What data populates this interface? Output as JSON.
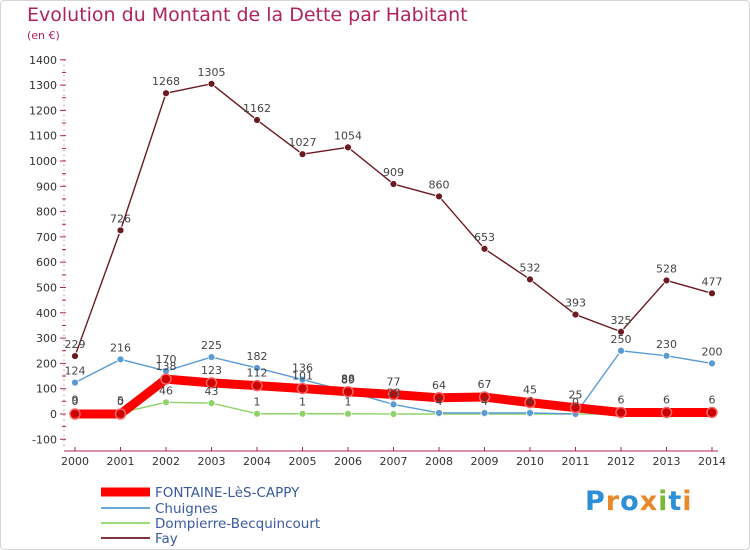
{
  "header": {
    "title": "Evolution du Montant de la Dette par Habitant",
    "unit": "(en €)"
  },
  "logo": {
    "text": "Proxiti",
    "colors": [
      "#2d8fd6",
      "#e8892a",
      "#2d8fd6",
      "#e8892a",
      "#7ab83a",
      "#2d8fd6",
      "#e8892a"
    ]
  },
  "chart_data": {
    "type": "line",
    "title": "Evolution du Montant de la Dette par Habitant",
    "ylabel": "(en €)",
    "xlabel": "",
    "x": [
      2000,
      2001,
      2002,
      2003,
      2004,
      2005,
      2006,
      2007,
      2008,
      2009,
      2010,
      2011,
      2012,
      2013,
      2014
    ],
    "ylim": [
      -100,
      1400
    ],
    "yticks": [
      -100,
      0,
      100,
      200,
      300,
      400,
      500,
      600,
      700,
      800,
      900,
      1000,
      1100,
      1200,
      1300,
      1400
    ],
    "grid": false,
    "legend": "bottom-left",
    "series": [
      {
        "name": "FONTAINE-LèS-CAPPY",
        "color": "#ff0000",
        "values": [
          0,
          0,
          138,
          123,
          112,
          101,
          88,
          77,
          64,
          67,
          45,
          25,
          6,
          6,
          6
        ],
        "labels": [
          "0",
          "0",
          "138",
          "123",
          "112",
          "101",
          "88",
          "77",
          "64",
          "67",
          "45",
          "25",
          "6",
          "6",
          "6"
        ]
      },
      {
        "name": "Chuignes",
        "color": "#5a9bd4",
        "values": [
          124,
          216,
          170,
          225,
          182,
          136,
          89,
          38,
          4,
          4,
          4,
          0,
          250,
          230,
          200
        ],
        "labels": [
          "124",
          "216",
          "170",
          "225",
          "182",
          "136",
          "89",
          "38",
          "4",
          "4",
          "4",
          "0",
          "250",
          "230",
          "200"
        ]
      },
      {
        "name": "Dompierre-Becquincourt",
        "color": "#8fd46a",
        "values": [
          9,
          5,
          46,
          43,
          1,
          1,
          1,
          0,
          0,
          0,
          0,
          0,
          0,
          0,
          0
        ],
        "labels": [
          "9",
          "5",
          "46",
          "43",
          "1",
          "1",
          "1",
          "",
          "",
          "",
          "",
          "",
          "",
          "",
          ""
        ]
      },
      {
        "name": "Fay",
        "color": "#6b1a22",
        "values": [
          229,
          726,
          1268,
          1305,
          1162,
          1027,
          1054,
          909,
          860,
          653,
          532,
          393,
          325,
          528,
          477
        ],
        "labels": [
          "229",
          "726",
          "1268",
          "1305",
          "1162",
          "1027",
          "1054",
          "909",
          "860",
          "653",
          "532",
          "393",
          "325",
          "528",
          "477"
        ]
      }
    ]
  }
}
